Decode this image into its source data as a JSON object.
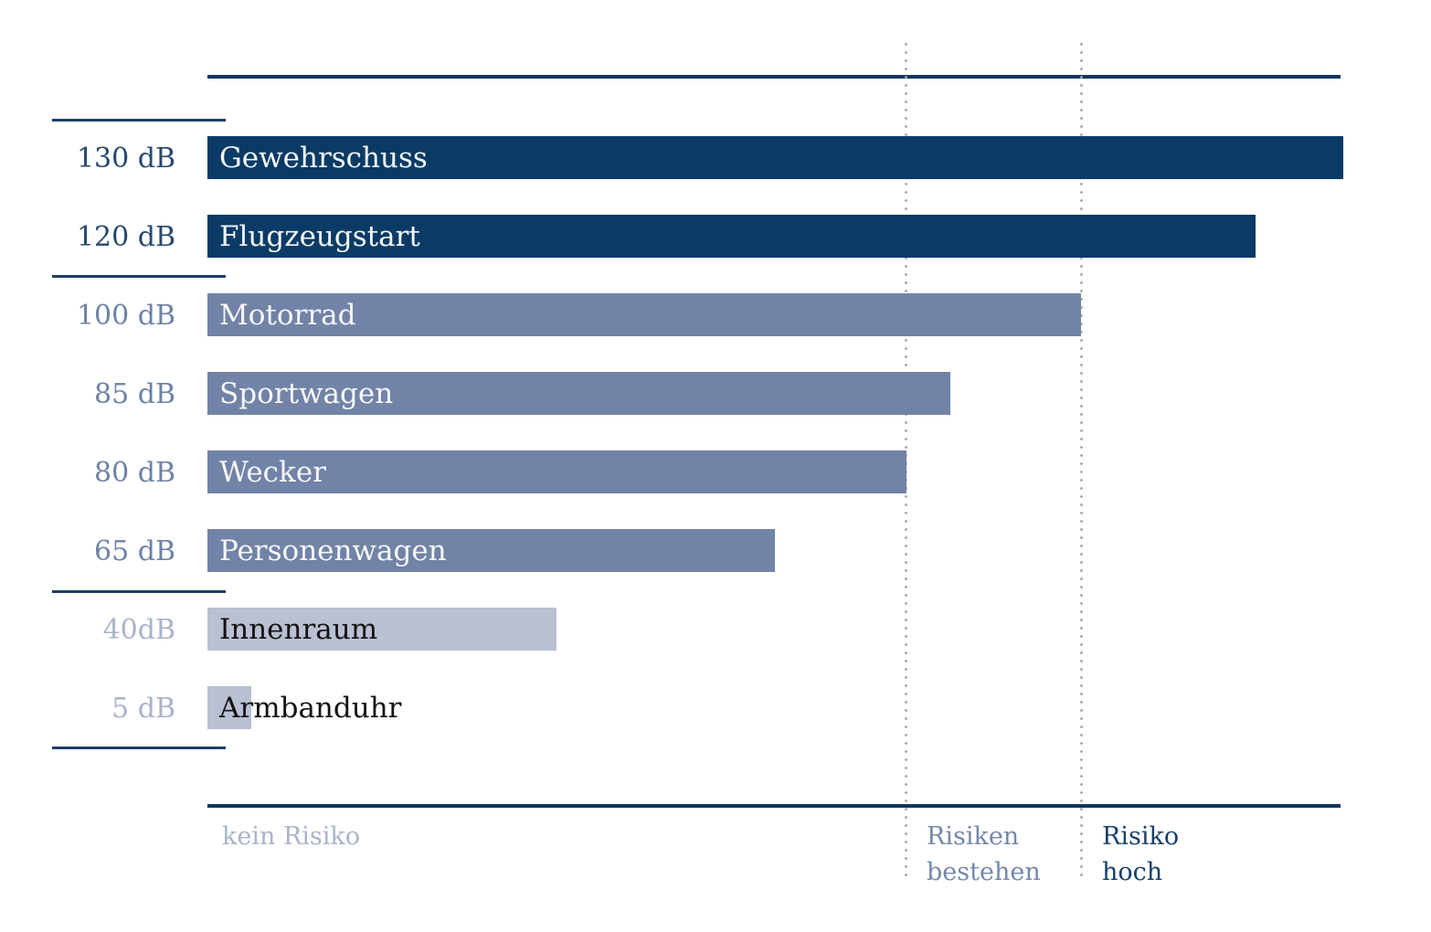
{
  "chart_data": {
    "type": "bar",
    "orientation": "horizontal",
    "unit": "dB",
    "axis": {
      "min": 0,
      "max": 130,
      "gridlines": false,
      "legend": "none"
    },
    "rows": [
      {
        "db_label": "130 dB",
        "value": 130,
        "label": "Gewehrschuss",
        "group": "high"
      },
      {
        "db_label": "120 dB",
        "value": 120,
        "label": "Flugzeugstart",
        "group": "high"
      },
      {
        "db_label": "100 dB",
        "value": 100,
        "label": "Motorrad",
        "group": "medium"
      },
      {
        "db_label": "85 dB",
        "value": 85,
        "label": "Sportwagen",
        "group": "medium"
      },
      {
        "db_label": "80 dB",
        "value": 80,
        "label": "Wecker",
        "group": "medium"
      },
      {
        "db_label": "65 dB",
        "value": 65,
        "label": "Personenwagen",
        "group": "medium"
      },
      {
        "db_label": "40dB",
        "value": 40,
        "label": "Innenraum",
        "group": "low"
      },
      {
        "db_label": "5 dB",
        "value": 5,
        "label": "Armbanduhr",
        "group": "low"
      }
    ],
    "thresholds": [
      {
        "value": 80
      },
      {
        "value": 100
      }
    ],
    "zones": [
      {
        "line1": "kein Risiko",
        "color": "#a9b3ca"
      },
      {
        "line1": "Risiken",
        "line2": "bestehen",
        "color": "#7588ab"
      },
      {
        "line1": "Risiko",
        "line2": "hoch",
        "color": "#16406b"
      }
    ]
  },
  "colors": {
    "bars": {
      "high": "#093b66",
      "medium": "#7183a7",
      "low": "#b9c0d3"
    },
    "axis_labels": {
      "high": "#27496f",
      "medium": "#6e82a6",
      "low": "#a9b3ca"
    },
    "bar_text_on_dark": "#f7f7f7",
    "bar_text_on_light": "#141414",
    "rule": "#10375e",
    "separator": "#1c4066",
    "dotted": "#a7a7a7"
  }
}
